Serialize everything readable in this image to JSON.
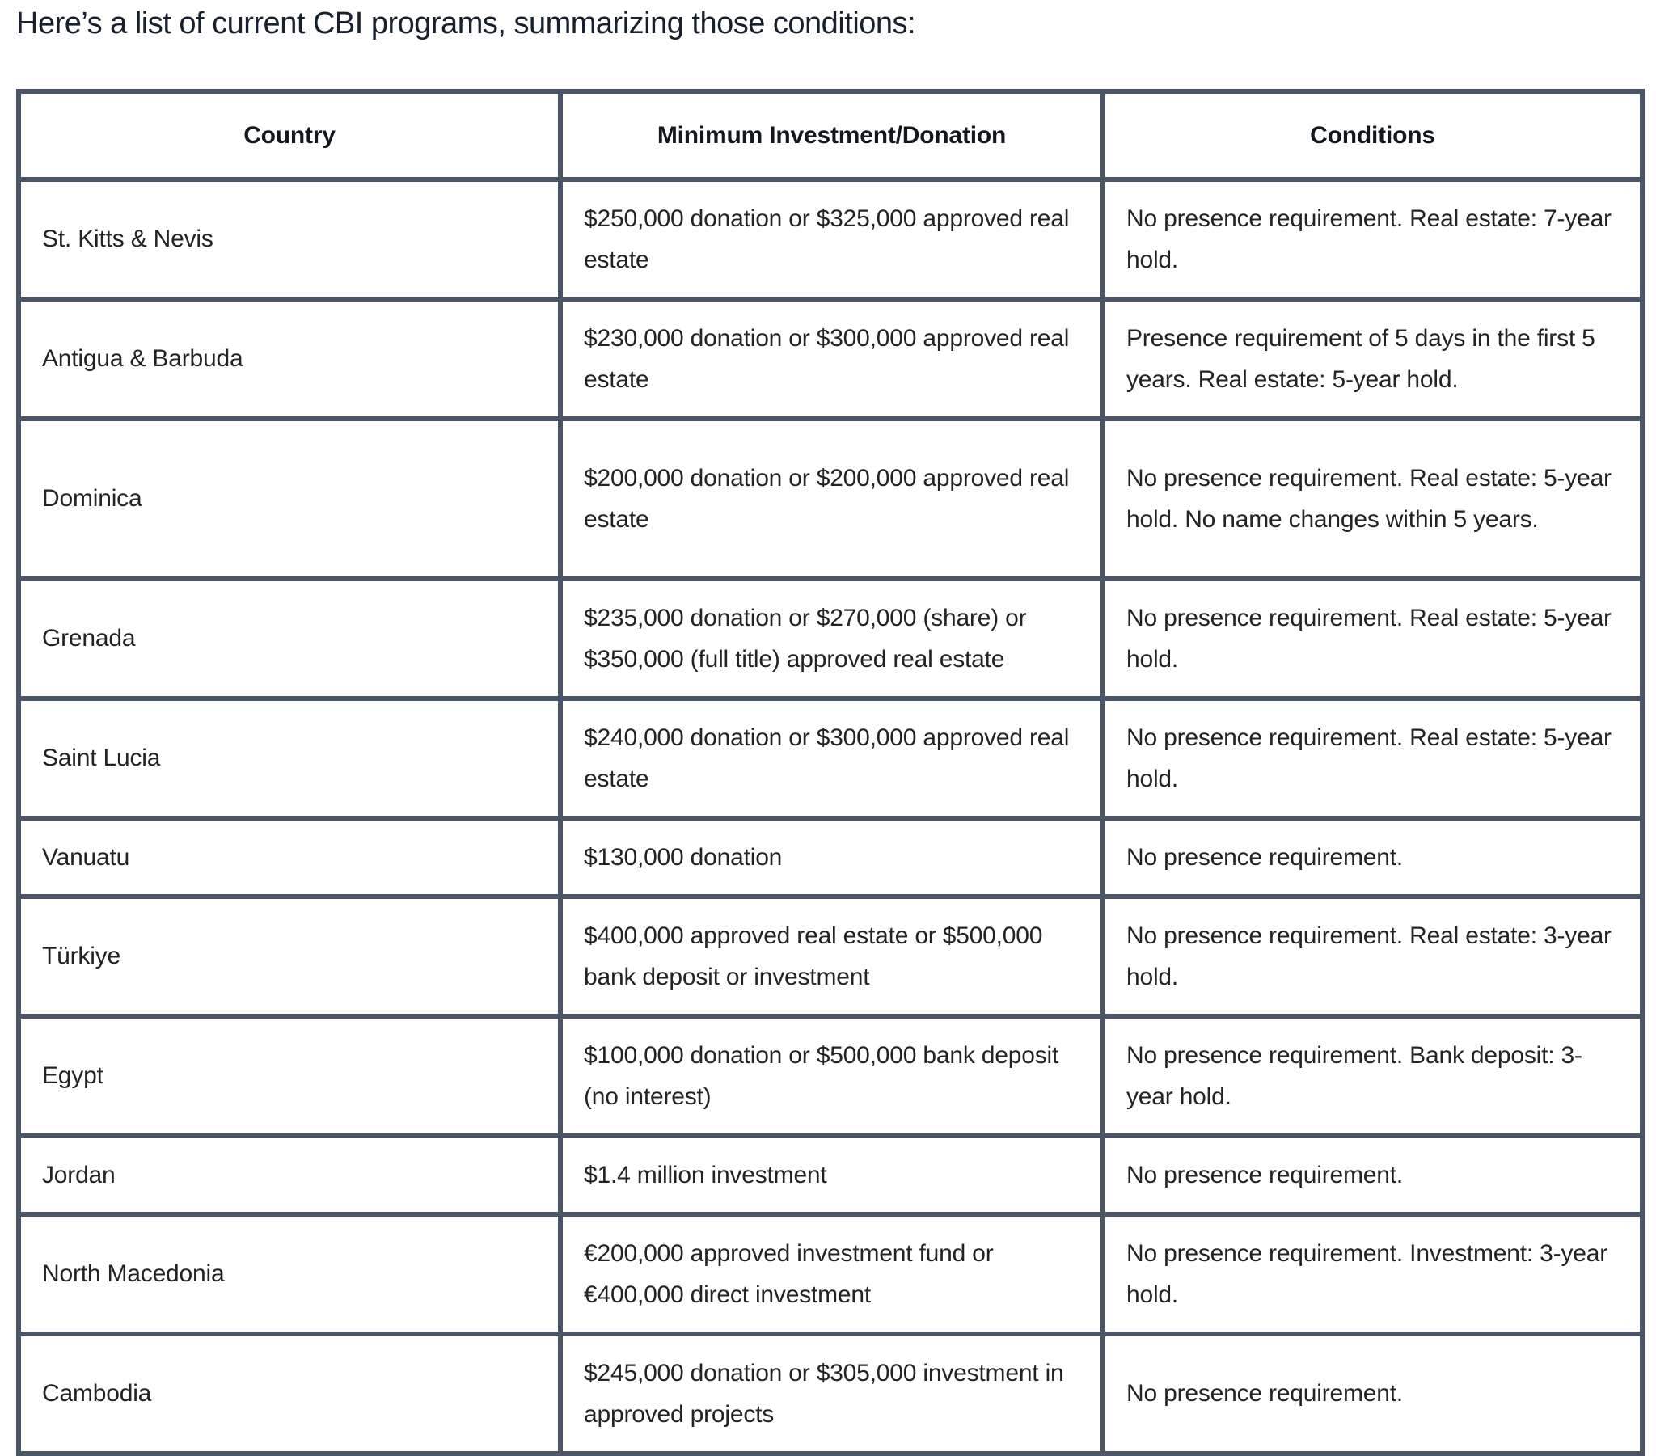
{
  "heading": "Here’s a list of current CBI programs, summarizing those conditions:",
  "table": {
    "columns": {
      "country": "Country",
      "investment": "Minimum Investment/Donation",
      "conditions": "Conditions"
    },
    "rows": [
      {
        "country": "St. Kitts & Nevis",
        "investment": "$250,000 donation or $325,000 approved real estate",
        "conditions": "No presence requirement. Real estate: 7-year hold."
      },
      {
        "country": "Antigua & Barbuda",
        "investment": "$230,000 donation or $300,000 approved real estate",
        "conditions": "Presence requirement of 5 days in the first 5 years. Real estate: 5-year hold."
      },
      {
        "country": "Dominica",
        "investment": "$200,000 donation or $200,000 approved real estate",
        "conditions": "No presence requirement. Real estate: 5-year hold. No name changes within 5 years."
      },
      {
        "country": "Grenada",
        "investment": "$235,000 donation or $270,000 (share) or $350,000 (full title) approved real estate",
        "conditions": "No presence requirement. Real estate: 5-year hold."
      },
      {
        "country": "Saint Lucia",
        "investment": "$240,000 donation or $300,000 approved real estate",
        "conditions": "No presence requirement. Real estate: 5-year hold."
      },
      {
        "country": "Vanuatu",
        "investment": "$130,000 donation",
        "conditions": "No presence requirement."
      },
      {
        "country": "Türkiye",
        "investment": "$400,000 approved real estate or $500,000 bank deposit or investment",
        "conditions": "No presence requirement. Real estate: 3-year hold."
      },
      {
        "country": "Egypt",
        "investment": "$100,000 donation or $500,000 bank deposit (no interest)",
        "conditions": "No presence requirement. Bank deposit: 3-year hold."
      },
      {
        "country": "Jordan",
        "investment": "$1.4 million investment",
        "conditions": "No presence requirement."
      },
      {
        "country": "North Macedonia",
        "investment": "€200,000 approved investment fund or €400,000 direct investment",
        "conditions": "No presence requirement. Investment: 3-year hold."
      },
      {
        "country": "Cambodia",
        "investment": "$245,000 donation or $305,000 investment in approved projects",
        "conditions": "No presence requirement."
      }
    ]
  },
  "colors": {
    "border": "#4a5668",
    "heading_text": "#16212d",
    "body_text": "#232323",
    "background": "#ffffff"
  }
}
